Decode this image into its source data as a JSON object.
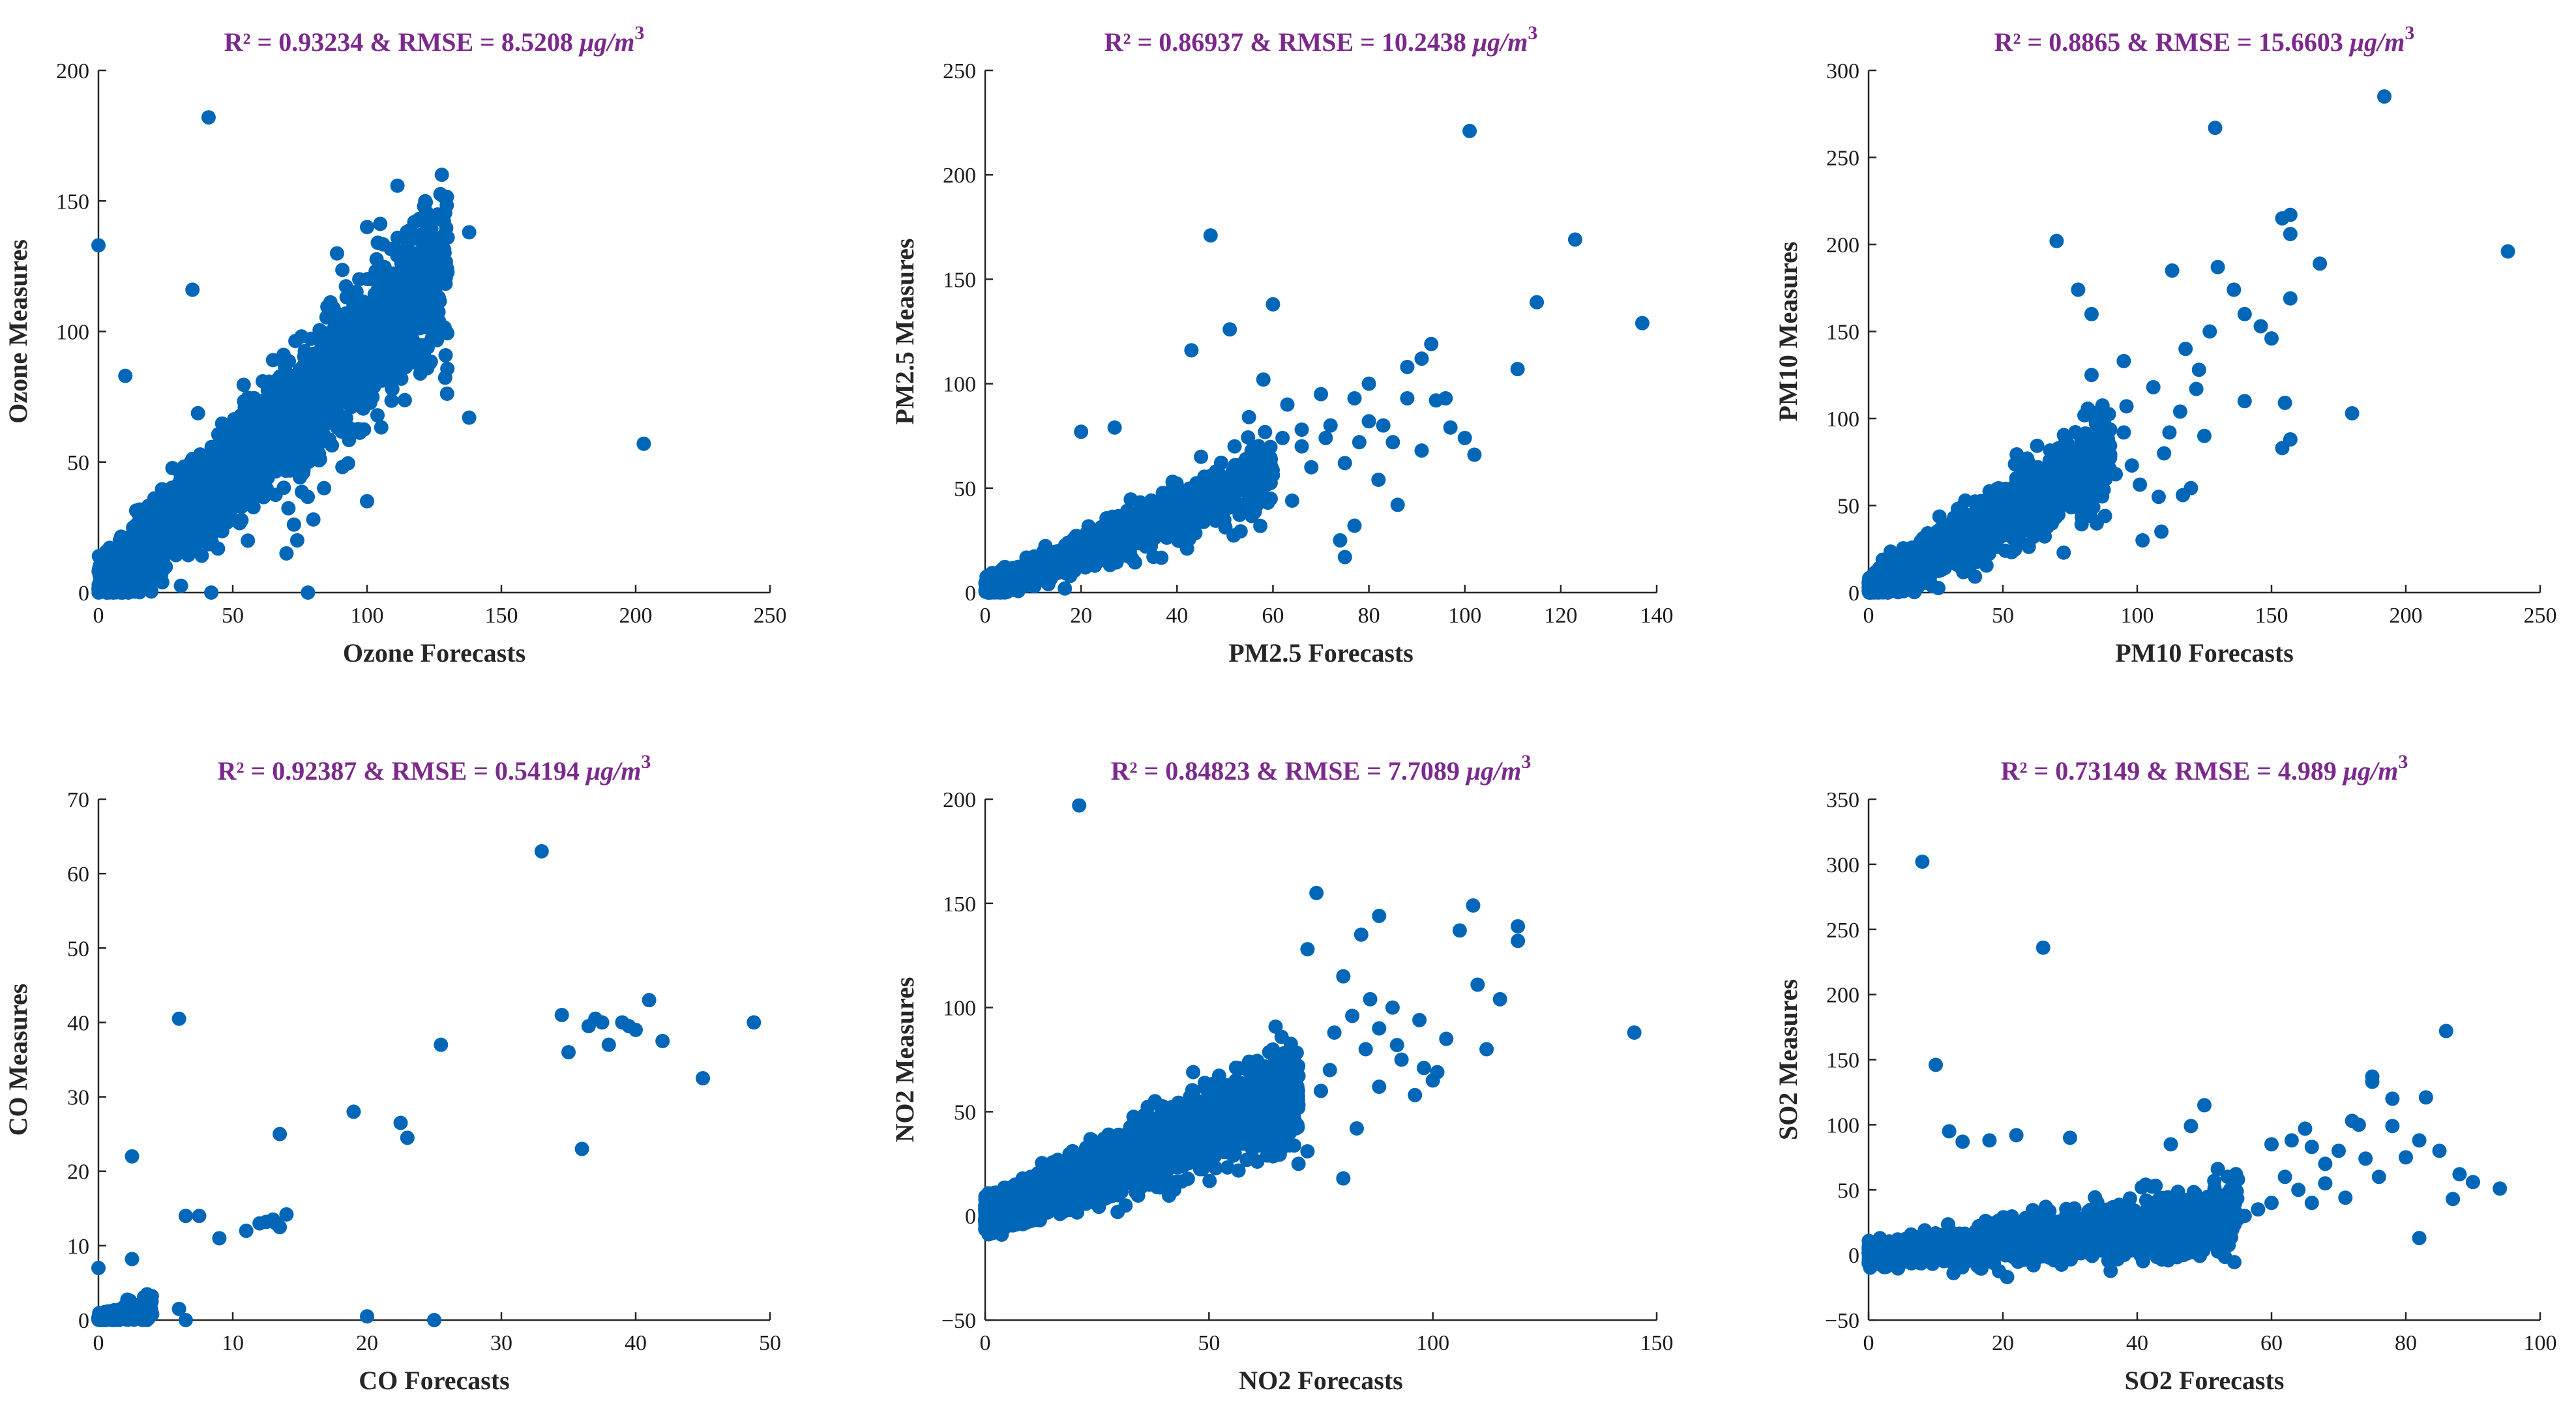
{
  "colors": {
    "points": "#0066b8",
    "title": "#7b2a8c",
    "axis": "#262626"
  },
  "chart_data": [
    {
      "type": "scatter",
      "title": "R² = 0.93234 & RMSE = 8.5208 μg/m³",
      "title_parts": {
        "r2": "R² = 0.93234 & RMSE = 8.5208 ",
        "unit_base": "μg/m",
        "unit_exp": "3"
      },
      "xlabel": "Ozone Forecasts",
      "ylabel": "Ozone Measures",
      "xlim": [
        0,
        250
      ],
      "ylim": [
        0,
        200
      ],
      "xticks": [
        0,
        50,
        100,
        150,
        200,
        250
      ],
      "yticks": [
        0,
        50,
        100,
        150,
        200
      ],
      "cloud": {
        "count": 2600,
        "x_range": [
          0,
          130
        ],
        "slope": 0.95,
        "spread": 16,
        "seed": 11
      },
      "points": [
        [
          41,
          182
        ],
        [
          0,
          133
        ],
        [
          35,
          116
        ],
        [
          138,
          138
        ],
        [
          100,
          140
        ],
        [
          104,
          134
        ],
        [
          130,
          136
        ],
        [
          138,
          67
        ],
        [
          203,
          57
        ],
        [
          80,
          28
        ],
        [
          70,
          15
        ],
        [
          100,
          35
        ],
        [
          78,
          0
        ],
        [
          42,
          0
        ],
        [
          10,
          83
        ],
        [
          84,
          40
        ],
        [
          74,
          20
        ]
      ]
    },
    {
      "type": "scatter",
      "title": "R² = 0.86937 & RMSE = 10.2438 μg/m³",
      "title_parts": {
        "r2": "R² = 0.86937 & RMSE = 10.2438 ",
        "unit_base": "μg/m",
        "unit_exp": "3"
      },
      "xlabel": "PM2.5 Forecasts",
      "ylabel": "PM2.5 Measures",
      "xlim": [
        0,
        140
      ],
      "ylim": [
        0,
        250
      ],
      "xticks": [
        0,
        20,
        40,
        60,
        80,
        100,
        120,
        140
      ],
      "yticks": [
        0,
        50,
        100,
        150,
        200,
        250
      ],
      "cloud": {
        "count": 900,
        "x_range": [
          0,
          60
        ],
        "slope": 0.95,
        "spread": 8,
        "seed": 23
      },
      "points": [
        [
          101,
          221
        ],
        [
          47,
          171
        ],
        [
          123,
          169
        ],
        [
          137,
          129
        ],
        [
          60,
          138
        ],
        [
          115,
          139
        ],
        [
          43,
          116
        ],
        [
          51,
          126
        ],
        [
          93,
          119
        ],
        [
          91,
          112
        ],
        [
          88,
          108
        ],
        [
          111,
          107
        ],
        [
          100,
          74
        ],
        [
          102,
          66
        ],
        [
          88,
          93
        ],
        [
          94,
          92
        ],
        [
          97,
          79
        ],
        [
          80,
          100
        ],
        [
          77,
          93
        ],
        [
          83,
          80
        ],
        [
          86,
          42
        ],
        [
          82,
          54
        ],
        [
          77,
          32
        ],
        [
          74,
          25
        ],
        [
          64,
          44
        ],
        [
          71,
          74
        ],
        [
          75,
          62
        ],
        [
          63,
          90
        ],
        [
          58,
          102
        ],
        [
          66,
          78
        ],
        [
          55,
          84
        ],
        [
          20,
          77
        ],
        [
          27,
          79
        ],
        [
          75,
          17
        ],
        [
          91,
          68
        ],
        [
          78,
          72
        ],
        [
          68,
          60
        ],
        [
          85,
          72
        ],
        [
          70,
          95
        ],
        [
          96,
          93
        ],
        [
          62,
          74
        ],
        [
          52,
          70
        ],
        [
          45,
          65
        ],
        [
          80,
          82
        ],
        [
          66,
          70
        ],
        [
          72,
          80
        ]
      ]
    },
    {
      "type": "scatter",
      "title": "R² = 0.8865 & RMSE = 15.6603 μg/m³",
      "title_parts": {
        "r2": "R² = 0.8865 & RMSE = 15.6603 ",
        "unit_base": "μg/m",
        "unit_exp": "3"
      },
      "xlabel": "PM10 Forecasts",
      "ylabel": "PM10 Measures",
      "xlim": [
        0,
        250
      ],
      "ylim": [
        0,
        300
      ],
      "xticks": [
        0,
        50,
        100,
        150,
        200,
        250
      ],
      "yticks": [
        0,
        50,
        100,
        150,
        200,
        250,
        300
      ],
      "cloud": {
        "count": 1300,
        "x_range": [
          0,
          90
        ],
        "slope": 0.9,
        "spread": 13,
        "seed": 37
      },
      "points": [
        [
          192,
          285
        ],
        [
          129,
          267
        ],
        [
          238,
          196
        ],
        [
          70,
          202
        ],
        [
          154,
          215
        ],
        [
          157,
          217
        ],
        [
          157,
          206
        ],
        [
          168,
          189
        ],
        [
          130,
          187
        ],
        [
          113,
          185
        ],
        [
          146,
          153
        ],
        [
          136,
          174
        ],
        [
          140,
          160
        ],
        [
          150,
          146
        ],
        [
          157,
          169
        ],
        [
          127,
          150
        ],
        [
          155,
          109
        ],
        [
          154,
          83
        ],
        [
          157,
          88
        ],
        [
          180,
          103
        ],
        [
          116,
          104
        ],
        [
          122,
          117
        ],
        [
          95,
          133
        ],
        [
          112,
          92
        ],
        [
          117,
          56
        ],
        [
          120,
          60
        ],
        [
          109,
          35
        ],
        [
          102,
          30
        ],
        [
          88,
          44
        ],
        [
          80,
          50
        ],
        [
          78,
          174
        ],
        [
          83,
          160
        ],
        [
          96,
          107
        ],
        [
          83,
          125
        ],
        [
          106,
          118
        ],
        [
          110,
          80
        ],
        [
          92,
          68
        ],
        [
          98,
          73
        ],
        [
          125,
          90
        ],
        [
          140,
          110
        ],
        [
          123,
          128
        ],
        [
          118,
          140
        ],
        [
          95,
          92
        ],
        [
          101,
          62
        ],
        [
          108,
          55
        ]
      ]
    },
    {
      "type": "scatter",
      "title": "R² = 0.92387 & RMSE = 0.54194 μg/m³",
      "title_parts": {
        "r2": "R² = 0.92387 & RMSE = 0.54194 ",
        "unit_base": "μg/m",
        "unit_exp": "3"
      },
      "xlabel": "CO Forecasts",
      "ylabel": "CO Measures",
      "xlim": [
        0,
        50
      ],
      "ylim": [
        0,
        70
      ],
      "xticks": [
        0,
        10,
        20,
        30,
        40,
        50
      ],
      "yticks": [
        0,
        10,
        20,
        30,
        40,
        50,
        60,
        70
      ],
      "cloud": {
        "count": 320,
        "x_range": [
          0,
          4
        ],
        "slope": 0.45,
        "spread": 0.9,
        "seed": 5
      },
      "points": [
        [
          33,
          63
        ],
        [
          6,
          40.5
        ],
        [
          34.5,
          41
        ],
        [
          35,
          36
        ],
        [
          36.5,
          39.5
        ],
        [
          37,
          40.5
        ],
        [
          37.5,
          40
        ],
        [
          38,
          37
        ],
        [
          39,
          40
        ],
        [
          39.5,
          39.5
        ],
        [
          40,
          39
        ],
        [
          41,
          43
        ],
        [
          42,
          37.5
        ],
        [
          45,
          32.5
        ],
        [
          48.8,
          40
        ],
        [
          36,
          23
        ],
        [
          25.5,
          37
        ],
        [
          19,
          28
        ],
        [
          22.5,
          26.5
        ],
        [
          23,
          24.5
        ],
        [
          13.5,
          25
        ],
        [
          2.5,
          22
        ],
        [
          6.5,
          14
        ],
        [
          7.5,
          14
        ],
        [
          9,
          11
        ],
        [
          11,
          12
        ],
        [
          12,
          13
        ],
        [
          12.5,
          13.2
        ],
        [
          13,
          13.5
        ],
        [
          13.2,
          13
        ],
        [
          13.5,
          12.5
        ],
        [
          14,
          14.2
        ],
        [
          20,
          0.5
        ],
        [
          25,
          0
        ],
        [
          0,
          7
        ],
        [
          2.5,
          8.2
        ],
        [
          6,
          1.5
        ],
        [
          6.5,
          0
        ],
        [
          3.5,
          1.5
        ],
        [
          4,
          0.8
        ]
      ]
    },
    {
      "type": "scatter",
      "title": "R² = 0.84823 & RMSE = 7.7089 μg/m³",
      "title_parts": {
        "r2": "R² = 0.84823 & RMSE = 7.7089 ",
        "unit_base": "μg/m",
        "unit_exp": "3"
      },
      "xlabel": "NO2 Forecasts",
      "ylabel": "NO2 Measures",
      "xlim": [
        0,
        150
      ],
      "ylim": [
        -50,
        200
      ],
      "xticks": [
        0,
        50,
        100,
        150
      ],
      "yticks": [
        -50,
        0,
        50,
        100,
        150,
        200
      ],
      "cloud": {
        "count": 2600,
        "x_range": [
          0,
          70
        ],
        "slope": 0.85,
        "spread": 11,
        "seed": 53
      },
      "points": [
        [
          21,
          197
        ],
        [
          74,
          155
        ],
        [
          109,
          149
        ],
        [
          88,
          144
        ],
        [
          106,
          137
        ],
        [
          119,
          139
        ],
        [
          119,
          132
        ],
        [
          145,
          88
        ],
        [
          84,
          135
        ],
        [
          72,
          128
        ],
        [
          80,
          18
        ],
        [
          72,
          31
        ],
        [
          88,
          62
        ],
        [
          83,
          42
        ],
        [
          96,
          58
        ],
        [
          101,
          69
        ],
        [
          103,
          85
        ],
        [
          112,
          80
        ],
        [
          110,
          111
        ],
        [
          115,
          104
        ],
        [
          88,
          90
        ],
        [
          92,
          82
        ],
        [
          97,
          94
        ],
        [
          98,
          71
        ],
        [
          91,
          100
        ],
        [
          86,
          104
        ],
        [
          82,
          96
        ],
        [
          78,
          88
        ],
        [
          80,
          115
        ],
        [
          85,
          80
        ],
        [
          93,
          75
        ],
        [
          77,
          70
        ],
        [
          75,
          60
        ],
        [
          70,
          25
        ],
        [
          68,
          45
        ],
        [
          100,
          65
        ]
      ]
    },
    {
      "type": "scatter",
      "title": "R² = 0.73149 & RMSE = 4.989 μg/m³",
      "title_parts": {
        "r2": "R² = 0.73149 & RMSE = 4.989 ",
        "unit_base": "μg/m",
        "unit_exp": "3"
      },
      "xlabel": "SO2 Forecasts",
      "ylabel": "SO2 Measures",
      "xlim": [
        0,
        100
      ],
      "ylim": [
        -50,
        350
      ],
      "xticks": [
        0,
        20,
        40,
        60,
        80,
        100
      ],
      "yticks": [
        -50,
        0,
        50,
        100,
        150,
        200,
        250,
        300,
        350
      ],
      "cloud": {
        "count": 1500,
        "x_range": [
          0,
          55
        ],
        "slope": 0.5,
        "spread": 13,
        "seed": 71
      },
      "points": [
        [
          8,
          302
        ],
        [
          26,
          236
        ],
        [
          10,
          146
        ],
        [
          86,
          172
        ],
        [
          75,
          137
        ],
        [
          75,
          133
        ],
        [
          83,
          121
        ],
        [
          78,
          120
        ],
        [
          82,
          88
        ],
        [
          85,
          80
        ],
        [
          88,
          62
        ],
        [
          87,
          43
        ],
        [
          90,
          56
        ],
        [
          94,
          51
        ],
        [
          82,
          13
        ],
        [
          72,
          103
        ],
        [
          73,
          100
        ],
        [
          65,
          97
        ],
        [
          66,
          83
        ],
        [
          68,
          70
        ],
        [
          70,
          80
        ],
        [
          60,
          85
        ],
        [
          62,
          60
        ],
        [
          60,
          40
        ],
        [
          58,
          35
        ],
        [
          55,
          58
        ],
        [
          52,
          66
        ],
        [
          50,
          115
        ],
        [
          48,
          99
        ],
        [
          45,
          85
        ],
        [
          78,
          99
        ],
        [
          80,
          75
        ],
        [
          76,
          60
        ],
        [
          64,
          50
        ],
        [
          68,
          55
        ],
        [
          56,
          30
        ],
        [
          54,
          40
        ],
        [
          30,
          90
        ],
        [
          22,
          92
        ],
        [
          18,
          88
        ],
        [
          14,
          87
        ],
        [
          12,
          95
        ],
        [
          63,
          88
        ],
        [
          71,
          44
        ],
        [
          66,
          40
        ],
        [
          74,
          74
        ]
      ]
    }
  ]
}
